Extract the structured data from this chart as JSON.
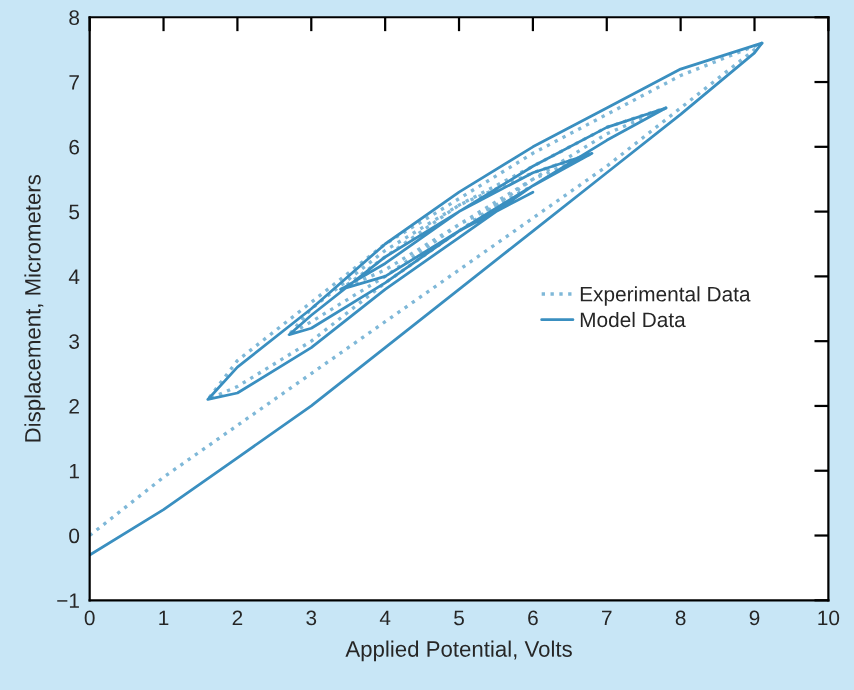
{
  "chart_data": {
    "type": "line",
    "xlabel": "Applied Potential, Volts",
    "ylabel": "Displacement, Micrometers",
    "xlim": [
      0,
      10
    ],
    "ylim": [
      -1,
      8
    ],
    "xticks": [
      0,
      1,
      2,
      3,
      4,
      5,
      6,
      7,
      8,
      9,
      10
    ],
    "yticks": [
      -1,
      0,
      1,
      2,
      3,
      4,
      5,
      6,
      7,
      8
    ],
    "grid": false,
    "legend": "right",
    "marker": "none",
    "series": [
      {
        "name": "Experimental Data",
        "color": "#7fb8d8",
        "line_style": "dotted",
        "x": [
          0,
          1,
          2,
          3,
          4,
          5,
          6,
          7,
          8,
          9,
          9.1,
          8,
          7,
          6,
          5,
          4,
          3,
          2,
          1.6,
          2,
          3,
          4,
          5,
          6,
          7,
          7.8,
          7,
          6,
          5,
          4,
          3,
          2.7,
          3,
          4,
          5,
          6,
          6.8,
          6,
          5,
          4,
          3.4,
          4,
          5,
          6
        ],
        "values": [
          0,
          0.9,
          1.7,
          2.5,
          3.3,
          4.1,
          4.9,
          5.7,
          6.6,
          7.5,
          7.6,
          7.1,
          6.5,
          5.9,
          5.2,
          4.5,
          3.6,
          2.7,
          2.1,
          2.3,
          3.0,
          3.9,
          4.7,
          5.5,
          6.2,
          6.6,
          6.3,
          5.7,
          5.1,
          4.4,
          3.5,
          3.1,
          3.3,
          4.0,
          4.8,
          5.5,
          5.9,
          5.6,
          5.1,
          4.3,
          3.8,
          4.1,
          4.8,
          5.4
        ]
      },
      {
        "name": "Model Data",
        "color": "#3a8fc0",
        "line_style": "solid",
        "x": [
          0,
          1,
          2,
          3,
          4,
          5,
          6,
          7,
          8,
          9,
          9.1,
          8,
          7,
          6,
          5,
          4,
          3,
          2,
          1.6,
          2,
          3,
          4,
          5,
          6,
          7,
          7.8,
          7,
          6,
          5,
          4,
          3,
          2.7,
          3,
          4,
          5,
          6,
          6.8,
          6,
          5,
          4,
          3.4,
          4,
          5,
          6
        ],
        "values": [
          -0.3,
          0.4,
          1.2,
          2.0,
          2.9,
          3.8,
          4.7,
          5.6,
          6.5,
          7.45,
          7.6,
          7.2,
          6.6,
          6.0,
          5.3,
          4.5,
          3.5,
          2.6,
          2.1,
          2.2,
          2.9,
          3.8,
          4.6,
          5.4,
          6.1,
          6.6,
          6.3,
          5.7,
          5.0,
          4.3,
          3.4,
          3.1,
          3.2,
          3.9,
          4.7,
          5.4,
          5.9,
          5.6,
          5.0,
          4.2,
          3.8,
          4.0,
          4.7,
          5.3
        ]
      }
    ]
  }
}
